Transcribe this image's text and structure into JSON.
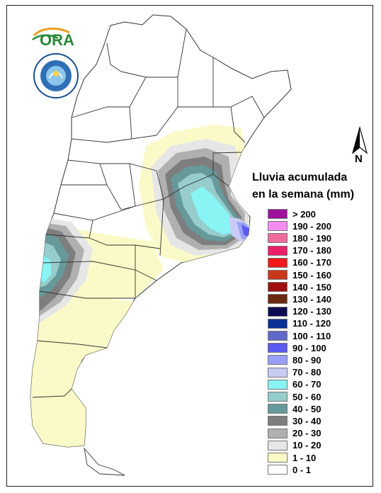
{
  "logo": {
    "text": "ORA"
  },
  "seal": {
    "text": "SERVICIO METEOROLÓGICO NACIONAL · ARGENTINA"
  },
  "north_arrow": {
    "label": "N"
  },
  "legend": {
    "title_line1": "Lluvia acumulada",
    "title_line2": "en la semana (mm)",
    "items": [
      {
        "label": "> 200",
        "color": "#a0109e"
      },
      {
        "label": "190 - 200",
        "color": "#f58cf0"
      },
      {
        "label": "180 - 190",
        "color": "#f06aa0"
      },
      {
        "label": "170 - 180",
        "color": "#ea1f6a"
      },
      {
        "label": "160 - 170",
        "color": "#f01a1a"
      },
      {
        "label": "150 - 160",
        "color": "#c8371a"
      },
      {
        "label": "140 - 150",
        "color": "#a01010"
      },
      {
        "label": "130 - 140",
        "color": "#6a2a10"
      },
      {
        "label": "120 - 130",
        "color": "#0c0c50"
      },
      {
        "label": "110 - 120",
        "color": "#0a2f96"
      },
      {
        "label": "100 - 110",
        "color": "#6068c8"
      },
      {
        "label": "90 - 100",
        "color": "#5a5af0"
      },
      {
        "label": "80 - 90",
        "color": "#9aa0f8"
      },
      {
        "label": "70 - 80",
        "color": "#c8ccf4"
      },
      {
        "label": "60 - 70",
        "color": "#88f4f4"
      },
      {
        "label": "50 - 60",
        "color": "#96cccc"
      },
      {
        "label": "40 - 50",
        "color": "#669a9a"
      },
      {
        "label": "30 - 40",
        "color": "#7e7e7e"
      },
      {
        "label": "20 - 30",
        "color": "#b0b0b0"
      },
      {
        "label": "10 - 20",
        "color": "#e6e6e6"
      },
      {
        "label": "1 - 10",
        "color": "#fafac8"
      },
      {
        "label": "0 - 1",
        "color": "#ffffff"
      }
    ]
  }
}
